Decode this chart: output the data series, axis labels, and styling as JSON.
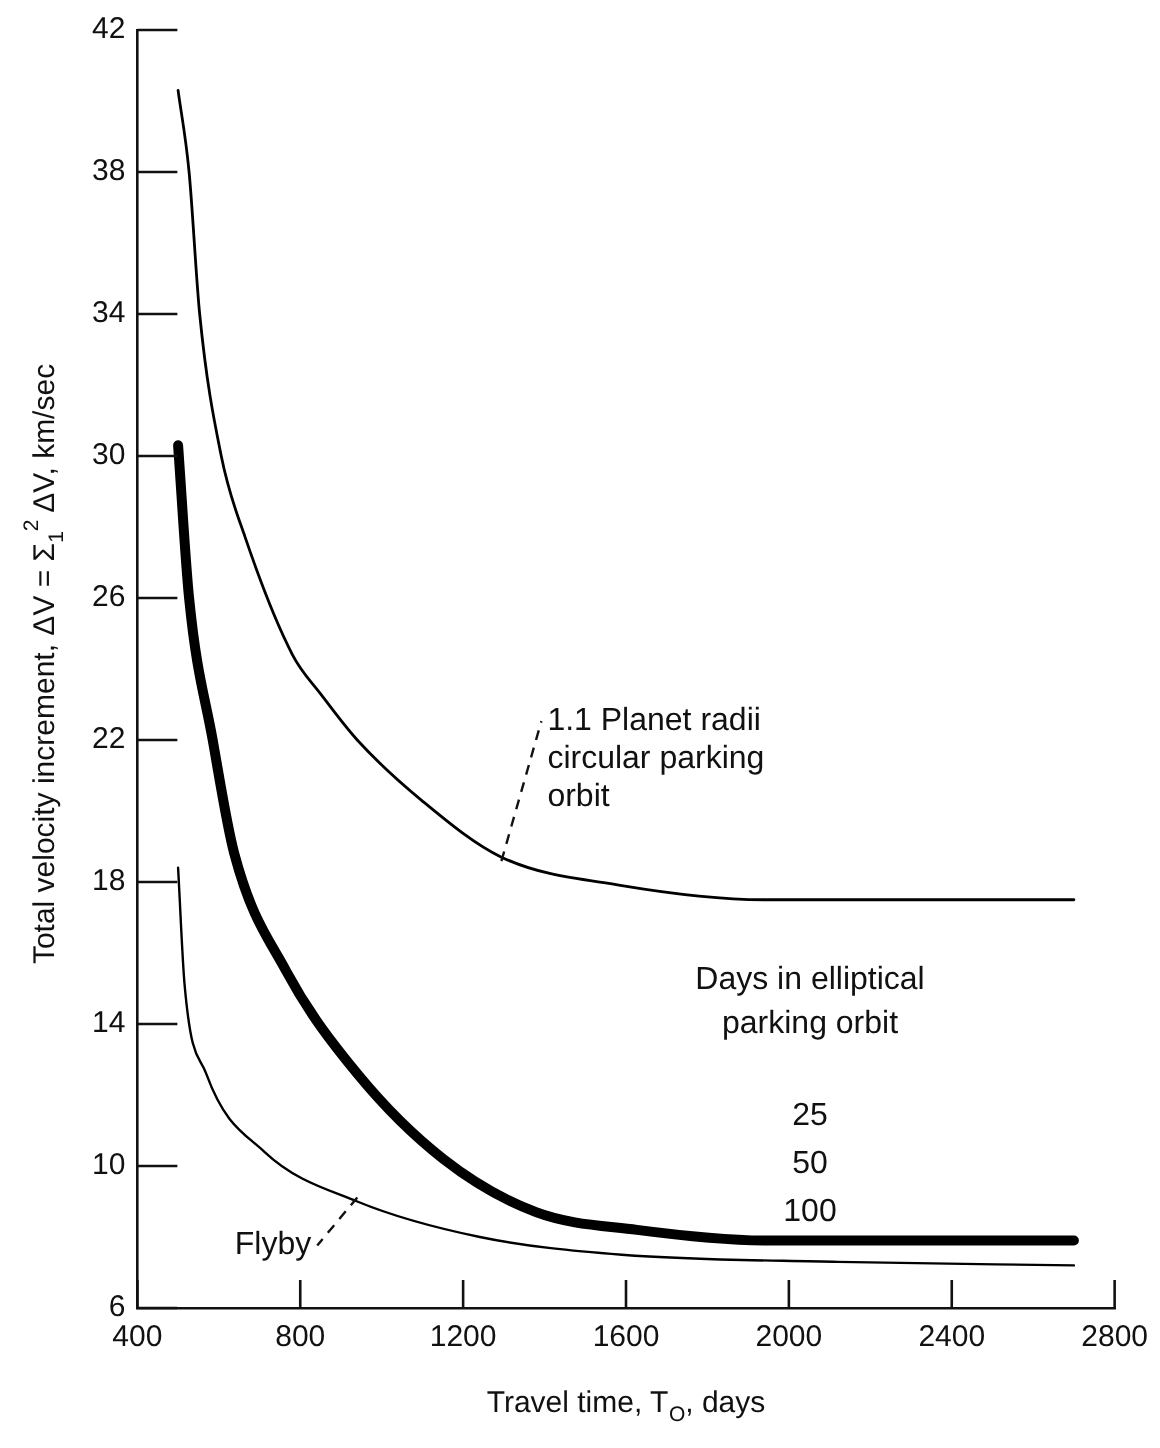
{
  "chart_data": {
    "type": "line",
    "xlabel": "Travel time, T$_{O}$, days",
    "ylabel": "Total velocity increment, ΔV = Σ$_{1}$$^{2}$ ΔV, km/sec",
    "xlim": [
      400,
      2800
    ],
    "xticks": [
      400,
      800,
      1200,
      1600,
      2000,
      2400,
      2800
    ],
    "ylim": [
      6,
      42
    ],
    "yticks": [
      6,
      10,
      14,
      18,
      22,
      26,
      30,
      34,
      38,
      42
    ],
    "marker": "none",
    "legend": false,
    "series": [
      {
        "name": "1.1 Planet radii circular parking orbit",
        "color": "#000000",
        "x": [
          500,
          527,
          553,
          606,
          665,
          781,
          850,
          940,
          1098,
          1294,
          1590,
          1945,
          2120,
          2700
        ],
        "values": [
          40.3,
          38,
          34,
          30,
          27.7,
          24.4,
          23.3,
          22.0,
          20.3,
          18.7,
          17.9,
          17.5,
          17.5,
          17.5
        ]
      },
      {
        "color": "#000000",
        "x": [
          500,
          527,
          585,
          638,
          765,
          940,
          1151,
          1379,
          1627,
          1945,
          2700
        ],
        "values": [
          30.3,
          26.0,
          22.0,
          18.8,
          15.5,
          12.6,
          10.2,
          8.7,
          8.2,
          7.9,
          7.9
        ]
      },
      {
        "name": "Flyby",
        "color": "#000000",
        "x": [
          500,
          516,
          569,
          712,
          940,
          1241,
          1590,
          2120,
          2700
        ],
        "values": [
          18.4,
          15.1,
          12.6,
          10.4,
          9.0,
          8.0,
          7.5,
          7.3,
          7.2
        ]
      }
    ],
    "annotations": [
      "Days in elliptical parking orbit",
      "25",
      "50",
      "100"
    ]
  }
}
